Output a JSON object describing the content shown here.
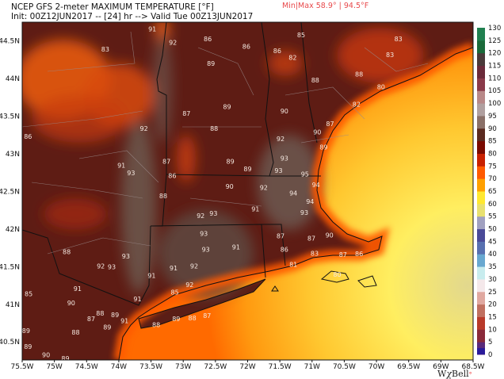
{
  "header": {
    "title": "NCEP GFS 2-meter MAXIMUM TEMPERATURE [°F]",
    "subtitle": "Init: 00Z12JUN2017 -- [24] hr --> Valid Tue 00Z13JUN2017",
    "minmax": "Min|Max 58.9° | 94.5°F"
  },
  "map": {
    "extent": {
      "lon_min": -75.5,
      "lon_max": -68.5,
      "lat_min": 40.26,
      "lat_max": 44.75
    },
    "lon_ticks": [
      "75.5W",
      "75W",
      "74.5W",
      "74W",
      "73.5W",
      "73W",
      "72.5W",
      "72W",
      "71.5W",
      "71W",
      "70.5W",
      "70W",
      "69.5W",
      "69W",
      "68.5W"
    ],
    "lat_ticks": [
      "44.5N",
      "44N",
      "43.5N",
      "43N",
      "42.5N",
      "42N",
      "41.5N",
      "41N",
      "40.5N"
    ],
    "colors": {
      "land_hot": "#5b1c16",
      "land_hottest": "#6b5148",
      "coast": "#ff6a00",
      "ocean": "#ffd23a",
      "ocean_cool": "#e6dc8c"
    },
    "station_values": [
      {
        "lon": -73.48,
        "lat": 44.66,
        "v": "91"
      },
      {
        "lon": -73.16,
        "lat": 44.48,
        "v": "92"
      },
      {
        "lon": -74.21,
        "lat": 44.39,
        "v": "83"
      },
      {
        "lon": -72.62,
        "lat": 44.53,
        "v": "86"
      },
      {
        "lon": -72.02,
        "lat": 44.43,
        "v": "86"
      },
      {
        "lon": -72.57,
        "lat": 44.2,
        "v": "89"
      },
      {
        "lon": -72.32,
        "lat": 43.63,
        "v": "89"
      },
      {
        "lon": -72.95,
        "lat": 43.54,
        "v": "87"
      },
      {
        "lon": -72.52,
        "lat": 43.34,
        "v": "88"
      },
      {
        "lon": -73.61,
        "lat": 43.34,
        "v": "92"
      },
      {
        "lon": -75.41,
        "lat": 43.23,
        "v": "86"
      },
      {
        "lon": -73.96,
        "lat": 42.85,
        "v": "91"
      },
      {
        "lon": -73.81,
        "lat": 42.75,
        "v": "93"
      },
      {
        "lon": -73.26,
        "lat": 42.9,
        "v": "87"
      },
      {
        "lon": -73.17,
        "lat": 42.71,
        "v": "86"
      },
      {
        "lon": -72.27,
        "lat": 42.9,
        "v": "89"
      },
      {
        "lon": -72.0,
        "lat": 42.8,
        "v": "89"
      },
      {
        "lon": -72.28,
        "lat": 42.57,
        "v": "90"
      },
      {
        "lon": -71.17,
        "lat": 44.58,
        "v": "85"
      },
      {
        "lon": -71.54,
        "lat": 44.37,
        "v": "86"
      },
      {
        "lon": -71.3,
        "lat": 44.28,
        "v": "82"
      },
      {
        "lon": -69.66,
        "lat": 44.53,
        "v": "83"
      },
      {
        "lon": -69.79,
        "lat": 44.32,
        "v": "83"
      },
      {
        "lon": -70.27,
        "lat": 44.06,
        "v": "88"
      },
      {
        "lon": -70.95,
        "lat": 43.98,
        "v": "88"
      },
      {
        "lon": -69.93,
        "lat": 43.89,
        "v": "80"
      },
      {
        "lon": -70.31,
        "lat": 43.66,
        "v": "82"
      },
      {
        "lon": -71.43,
        "lat": 43.57,
        "v": "90"
      },
      {
        "lon": -70.72,
        "lat": 43.4,
        "v": "87"
      },
      {
        "lon": -70.92,
        "lat": 43.29,
        "v": "90"
      },
      {
        "lon": -71.49,
        "lat": 43.2,
        "v": "92"
      },
      {
        "lon": -70.82,
        "lat": 43.09,
        "v": "89"
      },
      {
        "lon": -71.43,
        "lat": 42.94,
        "v": "93"
      },
      {
        "lon": -71.52,
        "lat": 42.78,
        "v": "93"
      },
      {
        "lon": -71.11,
        "lat": 42.73,
        "v": "95"
      },
      {
        "lon": -71.75,
        "lat": 42.55,
        "v": "92"
      },
      {
        "lon": -70.94,
        "lat": 42.59,
        "v": "94"
      },
      {
        "lon": -71.29,
        "lat": 42.48,
        "v": "94"
      },
      {
        "lon": -73.31,
        "lat": 42.44,
        "v": "88"
      },
      {
        "lon": -72.73,
        "lat": 42.18,
        "v": "92"
      },
      {
        "lon": -72.53,
        "lat": 42.21,
        "v": "93"
      },
      {
        "lon": -72.68,
        "lat": 41.94,
        "v": "93"
      },
      {
        "lon": -72.65,
        "lat": 41.73,
        "v": "93"
      },
      {
        "lon": -72.18,
        "lat": 41.76,
        "v": "91"
      },
      {
        "lon": -74.81,
        "lat": 41.7,
        "v": "88"
      },
      {
        "lon": -73.89,
        "lat": 41.64,
        "v": "93"
      },
      {
        "lon": -74.28,
        "lat": 41.51,
        "v": "92"
      },
      {
        "lon": -74.11,
        "lat": 41.5,
        "v": "93"
      },
      {
        "lon": -73.15,
        "lat": 41.48,
        "v": "91"
      },
      {
        "lon": -72.83,
        "lat": 41.51,
        "v": "92"
      },
      {
        "lon": -73.49,
        "lat": 41.38,
        "v": "91"
      },
      {
        "lon": -72.9,
        "lat": 41.26,
        "v": "92"
      },
      {
        "lon": -75.4,
        "lat": 41.14,
        "v": "85"
      },
      {
        "lon": -74.64,
        "lat": 41.21,
        "v": "91"
      },
      {
        "lon": -73.13,
        "lat": 41.16,
        "v": "85"
      },
      {
        "lon": -74.74,
        "lat": 41.02,
        "v": "90"
      },
      {
        "lon": -73.71,
        "lat": 41.07,
        "v": "91"
      },
      {
        "lon": -74.29,
        "lat": 40.88,
        "v": "88"
      },
      {
        "lon": -74.06,
        "lat": 40.86,
        "v": "89"
      },
      {
        "lon": -74.43,
        "lat": 40.81,
        "v": "87"
      },
      {
        "lon": -73.91,
        "lat": 40.78,
        "v": "91"
      },
      {
        "lon": -73.42,
        "lat": 40.73,
        "v": "88"
      },
      {
        "lon": -73.11,
        "lat": 40.81,
        "v": "89"
      },
      {
        "lon": -72.86,
        "lat": 40.82,
        "v": "88"
      },
      {
        "lon": -72.63,
        "lat": 40.85,
        "v": "87"
      },
      {
        "lon": -74.18,
        "lat": 40.7,
        "v": "89"
      },
      {
        "lon": -75.44,
        "lat": 40.65,
        "v": "89"
      },
      {
        "lon": -74.67,
        "lat": 40.63,
        "v": "88"
      },
      {
        "lon": -75.41,
        "lat": 40.44,
        "v": "89"
      },
      {
        "lon": -75.13,
        "lat": 40.33,
        "v": "90"
      },
      {
        "lon": -74.83,
        "lat": 40.28,
        "v": "89"
      },
      {
        "lon": -71.88,
        "lat": 42.27,
        "v": "91"
      },
      {
        "lon": -71.03,
        "lat": 42.37,
        "v": "94"
      },
      {
        "lon": -71.12,
        "lat": 42.22,
        "v": "93"
      },
      {
        "lon": -71.49,
        "lat": 41.91,
        "v": "87"
      },
      {
        "lon": -71.01,
        "lat": 41.88,
        "v": "87"
      },
      {
        "lon": -70.73,
        "lat": 41.92,
        "v": "90"
      },
      {
        "lon": -71.43,
        "lat": 41.73,
        "v": "86"
      },
      {
        "lon": -70.96,
        "lat": 41.68,
        "v": "83"
      },
      {
        "lon": -70.52,
        "lat": 41.66,
        "v": "87"
      },
      {
        "lon": -70.27,
        "lat": 41.67,
        "v": "86"
      },
      {
        "lon": -71.29,
        "lat": 41.53,
        "v": "81"
      },
      {
        "lon": -70.61,
        "lat": 41.4,
        "v": "80"
      }
    ]
  },
  "colorbar": {
    "ticks": [
      "0",
      "5",
      "10",
      "15",
      "20",
      "25",
      "30",
      "35",
      "40",
      "45",
      "50",
      "55",
      "60",
      "65",
      "70",
      "75",
      "80",
      "85",
      "90",
      "95",
      "100",
      "105",
      "110",
      "115",
      "120",
      "125",
      "130"
    ],
    "stops": [
      "#2a1a9a",
      "#5a2a7a",
      "#8a2a3a",
      "#b83a2a",
      "#c07060",
      "#e0a8a0",
      "#f4e8ea",
      "#c8ecee",
      "#68a8d0",
      "#5870b0",
      "#4a4a98",
      "#a0a0c0",
      "#e8e070",
      "#ffe830",
      "#ffa000",
      "#ff5a00",
      "#c82000",
      "#7a0a00",
      "#5a2a20",
      "#8a7068",
      "#b0a0a0",
      "#b88888",
      "#8a3a4a",
      "#6a2a3a",
      "#4a3a3a",
      "#1a6a3a",
      "#208050"
    ]
  },
  "logo": "WxBell"
}
